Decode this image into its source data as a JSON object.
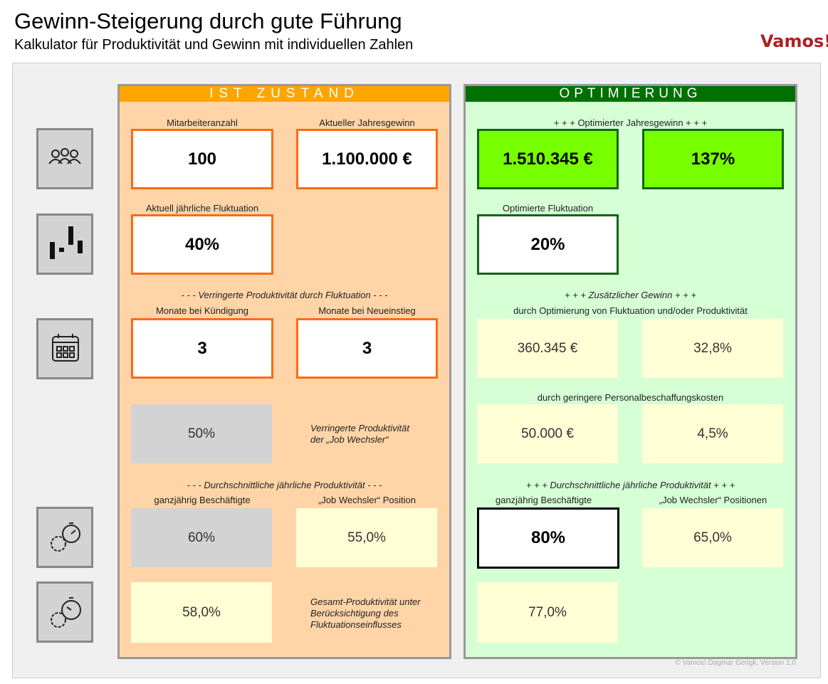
{
  "header": {
    "title": "Gewinn-Steigerung durch gute Führung",
    "subtitle": "Kalkulator für Produktivität und Gewinn mit individuellen Zahlen",
    "logo": "Vamos!"
  },
  "ist": {
    "heading": "IST ZUSTAND",
    "labels": [
      "Mitarbeiteranzahl",
      "Aktueller Jahresgewinn",
      "Aktuell jährliche Fluktuation",
      "- - - Verringerte Produktivität durch Fluktuation - - -",
      "Monate bei Kündigung",
      "Monate bei Neueinstieg",
      "- - - Durchschnittliche jährliche Produktivität - - -",
      "ganzjährig Beschäftigte",
      "„Job Wechsler“ Position"
    ],
    "values": [
      "100",
      "1.100.000 €",
      "40%",
      "3",
      "3",
      "50%",
      "60%",
      "55,0%",
      "58,0%"
    ],
    "notes": [
      "Verringerte Produktivität\nder „Job Wechsler“",
      "Gesamt-Produktivität unter\nBerücksichtigung des\nFluktuationseinflusses"
    ]
  },
  "optimierung": {
    "heading": "OPTIMIERUNG",
    "labels": [
      "+ + + Optimierter Jahresgewinn + + +",
      "Optimierte Fluktuation",
      "+ + + Zusätzlicher Gewinn + + +",
      "durch Optimierung von Fluktuation und/oder Produktivität",
      "durch geringere Personalbeschaffungskosten",
      "+ + + Durchschnittliche jährliche Produktivität + + +",
      "ganzjährig Beschäftigte",
      "„Job Wechsler“ Positionen"
    ],
    "values": [
      "1.510.345 €",
      "137%",
      "20%",
      "360.345 €",
      "32,8%",
      "50.000 €",
      "4,5%",
      "80%",
      "65,0%",
      "77,0%"
    ]
  },
  "footer": "© Vamos! Dagmar Gerigk, Version 1.0"
}
